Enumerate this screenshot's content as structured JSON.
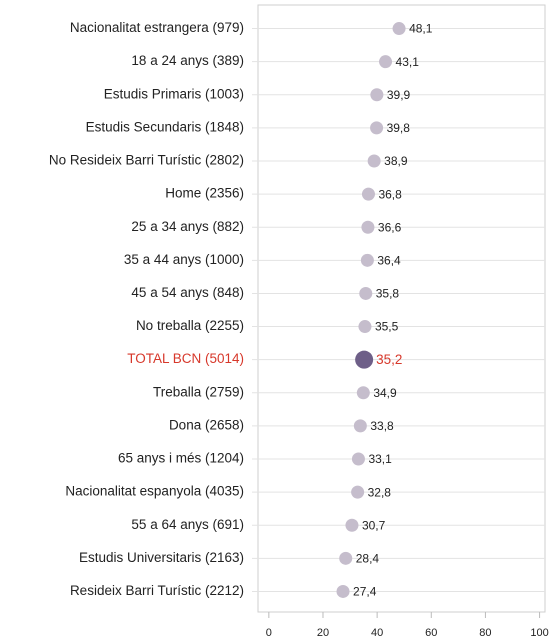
{
  "chart_data": {
    "type": "dot",
    "categories": [
      "Nacionalitat estrangera (979)",
      "18 a 24 anys (389)",
      "Estudis Primaris (1003)",
      "Estudis Secundaris (1848)",
      "No Resideix Barri Turístic (2802)",
      "Home (2356)",
      "25 a 34 anys (882)",
      "35 a 44 anys (1000)",
      "45 a 54 anys (848)",
      "No treballa (2255)",
      "TOTAL BCN (5014)",
      "Treballa (2759)",
      "Dona (2658)",
      "65 anys i més (1204)",
      "Nacionalitat espanyola (4035)",
      "55 a 64 anys (691)",
      "Estudis Universitaris (2163)",
      "Resideix Barri Turístic (2212)"
    ],
    "values": [
      48.1,
      43.1,
      39.9,
      39.8,
      38.9,
      36.8,
      36.6,
      36.4,
      35.8,
      35.5,
      35.2,
      34.9,
      33.8,
      33.1,
      32.8,
      30.7,
      28.4,
      27.4
    ],
    "value_labels": [
      "48,1",
      "43,1",
      "39,9",
      "39,8",
      "38,9",
      "36,8",
      "36,6",
      "36,4",
      "35,8",
      "35,5",
      "35,2",
      "34,9",
      "33,8",
      "33,1",
      "32,8",
      "30,7",
      "28,4",
      "27,4"
    ],
    "color": "#c5bdcc",
    "highlight": 10,
    "highlight_color": "#6e5f88",
    "highlight_label_color": "#d7382b",
    "xlim": [
      -4,
      102
    ],
    "xticks": [
      0,
      20,
      40,
      60,
      80,
      100
    ],
    "grid": true
  }
}
